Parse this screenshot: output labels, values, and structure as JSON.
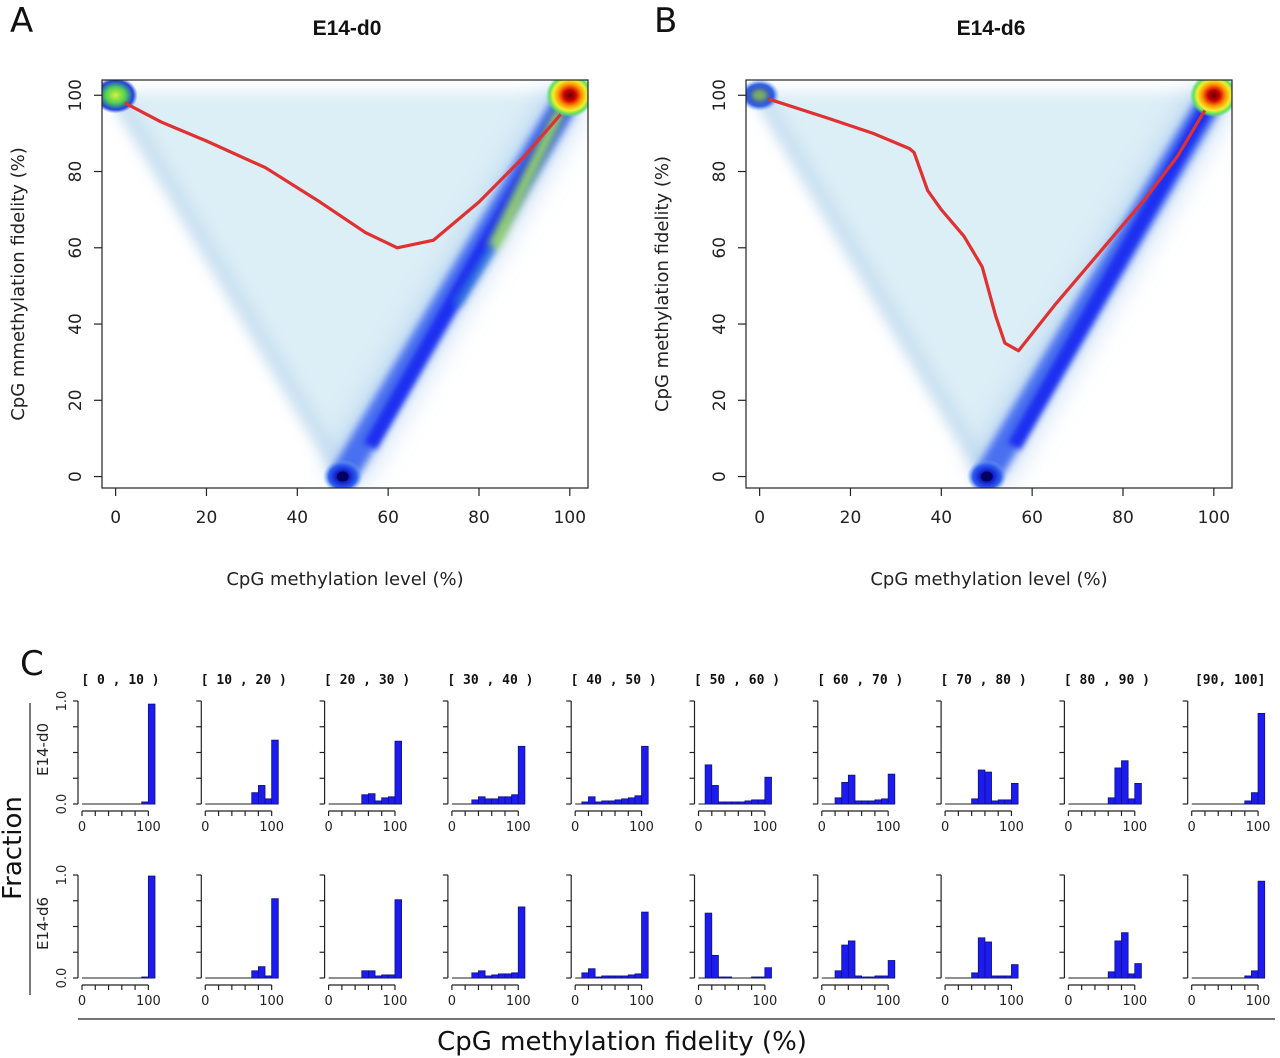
{
  "panels": {
    "A": {
      "letter": "A",
      "title": "E14-d0",
      "xlabel": "CpG methylation level (%)",
      "ylabel": "CpG mmethylation fidelity (%)"
    },
    "B": {
      "letter": "B",
      "title": "E14-d6",
      "xlabel": "CpG methylation level (%)",
      "ylabel": "CpG methylation fidelity (%)"
    },
    "C": {
      "letter": "C",
      "xlabel": "CpG methylation fidelity (%)",
      "ylabel": "Fraction",
      "row_labels": [
        "E14-d0",
        "E14-d6"
      ],
      "bin_titles": [
        "[ 0 ,  10 )",
        "[ 10 ,  20 )",
        "[ 20 ,  30 )",
        "[ 30 ,  40 )",
        "[ 40 ,  50 )",
        "[ 50 ,  60 )",
        "[ 60 ,  70 )",
        "[ 70 ,  80 )",
        "[ 80 ,  90 )",
        "[90, 100]"
      ]
    }
  },
  "colors": {
    "density_low": "#dceef6",
    "density_mid": "#1a2ff0",
    "density_high": "#3fe03a",
    "density_peak": "#d00000",
    "trend_line": "#e03030",
    "bar_fill": "#1c1cf0",
    "bar_stroke": "#10107a"
  },
  "chart_data": [
    {
      "type": "heatmap",
      "panel": "A",
      "title": "E14-d0",
      "xlabel": "CpG methylation level (%)",
      "ylabel": "CpG mmethylation fidelity (%)",
      "xlim": [
        -3,
        104
      ],
      "ylim": [
        -3,
        104
      ],
      "xticks": [
        0,
        20,
        40,
        60,
        80,
        100
      ],
      "yticks": [
        0,
        20,
        40,
        60,
        80,
        100
      ],
      "trend_line": {
        "x": [
          2,
          10,
          20,
          33,
          45,
          55,
          62,
          70,
          80,
          90,
          98
        ],
        "y": [
          98,
          93,
          88,
          81,
          72,
          64,
          60,
          62,
          72,
          84,
          95
        ]
      }
    },
    {
      "type": "heatmap",
      "panel": "B",
      "title": "E14-d6",
      "xlabel": "CpG methylation level (%)",
      "ylabel": "CpG methylation fidelity (%)",
      "xlim": [
        -3,
        104
      ],
      "ylim": [
        -3,
        104
      ],
      "xticks": [
        0,
        20,
        40,
        60,
        80,
        100
      ],
      "yticks": [
        0,
        20,
        40,
        60,
        80,
        100
      ],
      "trend_line": {
        "x": [
          2,
          15,
          25,
          33,
          34,
          37,
          40,
          45,
          49,
          52,
          54,
          57,
          65,
          75,
          85,
          92,
          98
        ],
        "y": [
          99,
          94,
          90,
          86,
          85,
          75,
          70,
          63,
          55,
          42,
          35,
          33,
          45,
          59,
          73,
          84,
          96
        ]
      }
    },
    {
      "type": "bar",
      "panel": "C",
      "xlabel": "CpG methylation fidelity (%)",
      "ylabel": "Fraction",
      "xticks": [
        0,
        100
      ],
      "yticks": [
        0.0,
        1.0
      ],
      "bin_edges": [
        0,
        10,
        20,
        30,
        40,
        50,
        60,
        70,
        80,
        90,
        100,
        110
      ],
      "series": [
        {
          "name": "E14-d0",
          "histograms": [
            [
              0,
              0,
              0,
              0,
              0,
              0,
              0,
              0,
              0,
              0.02,
              0.97
            ],
            [
              0,
              0,
              0,
              0,
              0,
              0,
              0,
              0.11,
              0.18,
              0.05,
              0.62
            ],
            [
              0,
              0,
              0,
              0,
              0,
              0.09,
              0.1,
              0.03,
              0.06,
              0.07,
              0.61
            ],
            [
              0,
              0,
              0,
              0.04,
              0.07,
              0.05,
              0.05,
              0.07,
              0.07,
              0.09,
              0.56
            ],
            [
              0,
              0.02,
              0.07,
              0.02,
              0.03,
              0.03,
              0.04,
              0.05,
              0.06,
              0.08,
              0.56
            ],
            [
              0,
              0.38,
              0.18,
              0.02,
              0.02,
              0.02,
              0.02,
              0.03,
              0.04,
              0.04,
              0.26
            ],
            [
              0,
              0,
              0.06,
              0.21,
              0.28,
              0.03,
              0.03,
              0.03,
              0.04,
              0.05,
              0.29
            ],
            [
              0,
              0,
              0,
              0,
              0.05,
              0.33,
              0.31,
              0.03,
              0.04,
              0.04,
              0.2
            ],
            [
              0,
              0,
              0,
              0,
              0,
              0,
              0.06,
              0.35,
              0.42,
              0.05,
              0.2
            ],
            [
              0,
              0,
              0,
              0,
              0,
              0,
              0,
              0,
              0.03,
              0.11,
              0.88
            ]
          ]
        },
        {
          "name": "E14-d6",
          "histograms": [
            [
              0,
              0,
              0,
              0,
              0,
              0,
              0,
              0,
              0,
              0.01,
              0.99
            ],
            [
              0,
              0,
              0,
              0,
              0,
              0,
              0,
              0.07,
              0.11,
              0.02,
              0.77
            ],
            [
              0,
              0,
              0,
              0,
              0,
              0.07,
              0.07,
              0.02,
              0.03,
              0.03,
              0.76
            ],
            [
              0,
              0,
              0,
              0.05,
              0.07,
              0.02,
              0.03,
              0.04,
              0.04,
              0.05,
              0.69
            ],
            [
              0,
              0.05,
              0.09,
              0.01,
              0.02,
              0.02,
              0.02,
              0.02,
              0.03,
              0.04,
              0.64
            ],
            [
              0,
              0.63,
              0.22,
              0.01,
              0.01,
              0,
              0,
              0,
              0.01,
              0.01,
              0.1
            ],
            [
              0,
              0,
              0.07,
              0.32,
              0.36,
              0.02,
              0.01,
              0.01,
              0.02,
              0.02,
              0.17
            ],
            [
              0,
              0,
              0,
              0,
              0.05,
              0.39,
              0.35,
              0.02,
              0.02,
              0.02,
              0.13
            ],
            [
              0,
              0,
              0,
              0,
              0,
              0,
              0.06,
              0.36,
              0.44,
              0.04,
              0.14
            ],
            [
              0,
              0,
              0,
              0,
              0,
              0,
              0,
              0,
              0.02,
              0.07,
              0.94
            ]
          ]
        }
      ]
    }
  ]
}
